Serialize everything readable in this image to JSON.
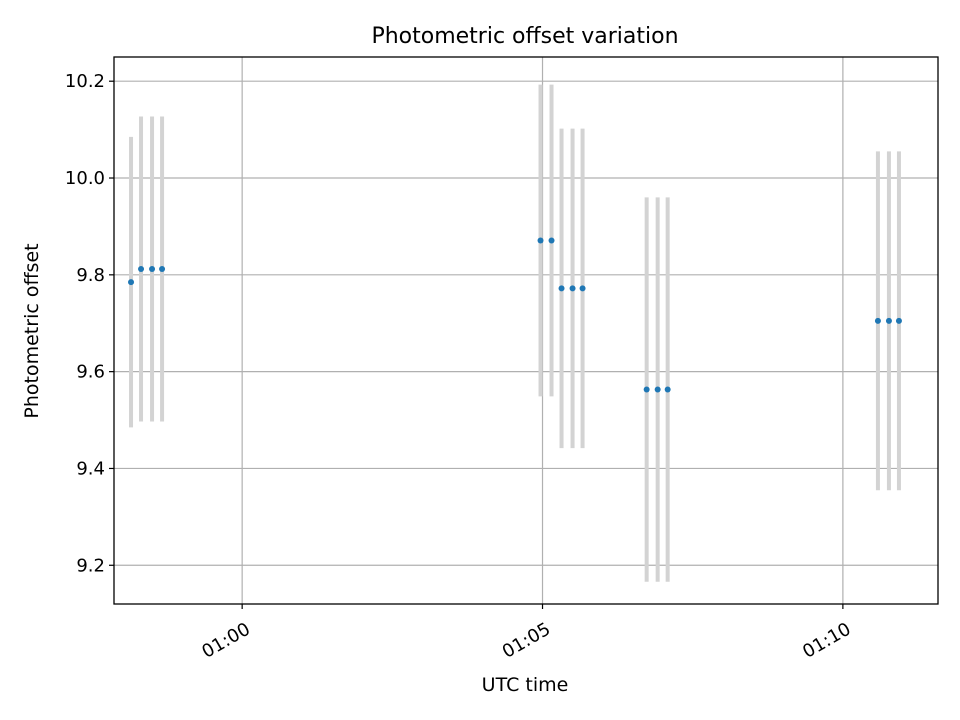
{
  "chart_data": {
    "type": "scatter",
    "title": "Photometric offset variation",
    "xlabel": "UTC time",
    "ylabel": "Photometric offset",
    "x_ticks": [
      "01:00",
      "01:05",
      "01:10"
    ],
    "y_ticks": [
      9.2,
      9.4,
      9.6,
      9.8,
      10.0,
      10.2
    ],
    "xlim": [
      "00:57:52",
      "01:11:35"
    ],
    "ylim": [
      9.12,
      10.25
    ],
    "grid": true,
    "series": [
      {
        "marker_color": "#1f77b4",
        "error_color": "#d3d3d3",
        "points": [
          {
            "x": "00:58:09",
            "y": 9.785,
            "err": 0.3
          },
          {
            "x": "00:58:19",
            "y": 9.812,
            "err": 0.315
          },
          {
            "x": "00:58:30",
            "y": 9.812,
            "err": 0.315
          },
          {
            "x": "00:58:40",
            "y": 9.812,
            "err": 0.315
          },
          {
            "x": "01:04:58",
            "y": 9.871,
            "err": 0.322
          },
          {
            "x": "01:05:09",
            "y": 9.871,
            "err": 0.322
          },
          {
            "x": "01:05:19",
            "y": 9.772,
            "err": 0.33
          },
          {
            "x": "01:05:30",
            "y": 9.772,
            "err": 0.33
          },
          {
            "x": "01:05:40",
            "y": 9.772,
            "err": 0.33
          },
          {
            "x": "01:06:44",
            "y": 9.563,
            "err": 0.397
          },
          {
            "x": "01:06:55",
            "y": 9.563,
            "err": 0.397
          },
          {
            "x": "01:07:05",
            "y": 9.563,
            "err": 0.397
          },
          {
            "x": "01:10:35",
            "y": 9.705,
            "err": 0.35
          },
          {
            "x": "01:10:46",
            "y": 9.705,
            "err": 0.35
          },
          {
            "x": "01:10:56",
            "y": 9.705,
            "err": 0.35
          }
        ]
      }
    ]
  }
}
